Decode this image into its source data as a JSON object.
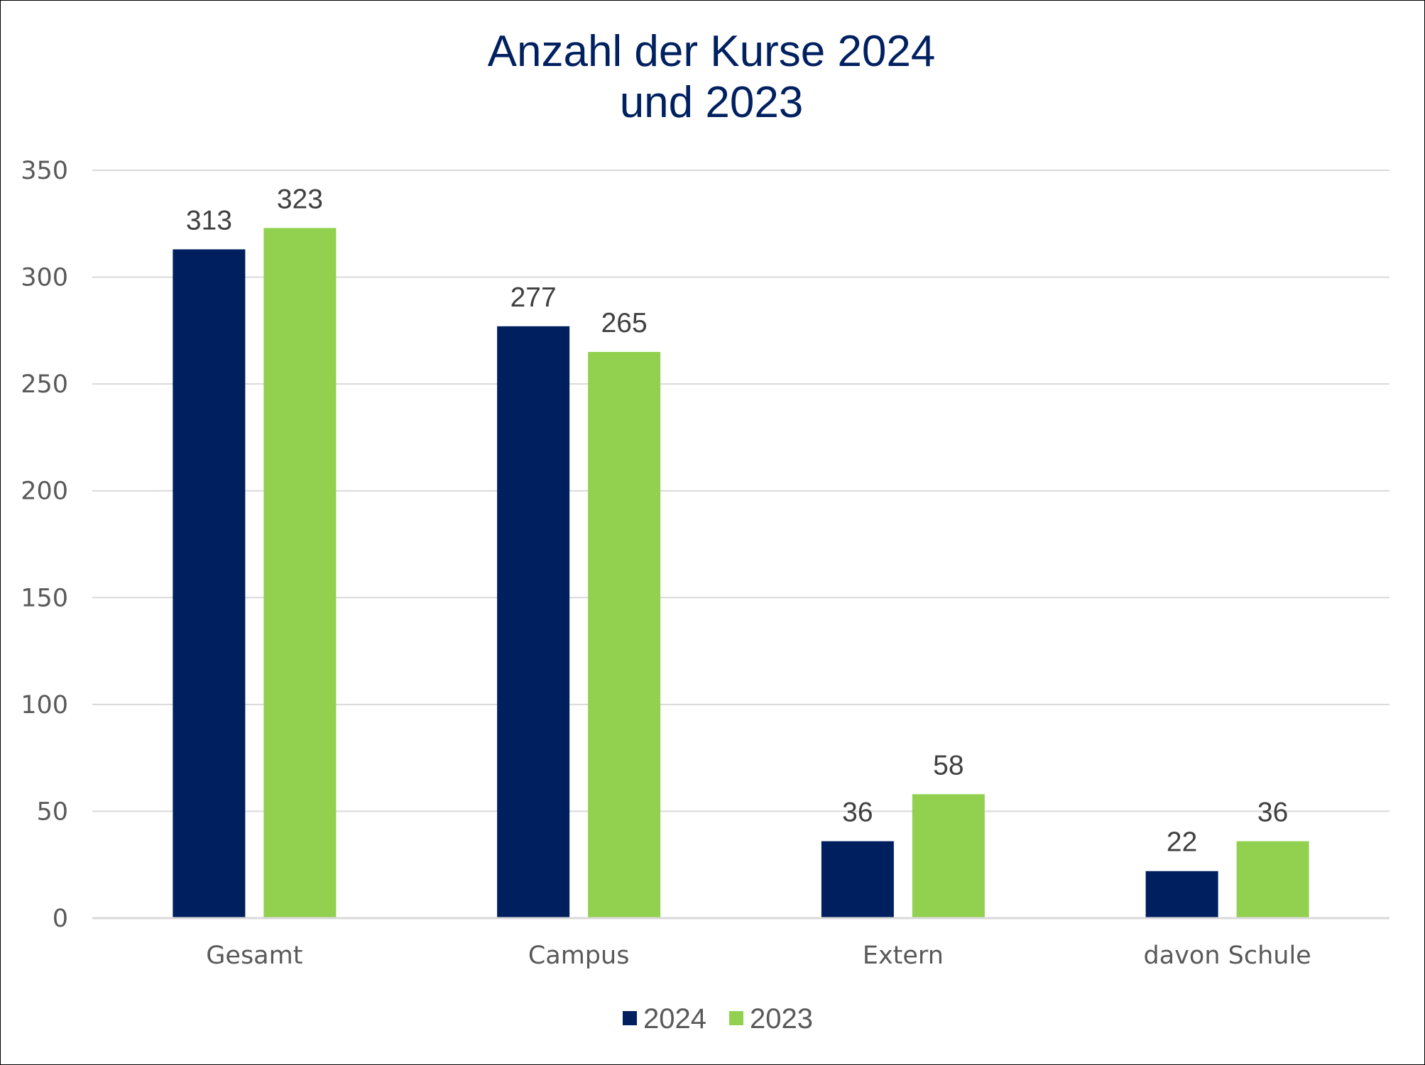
{
  "chart_data": {
    "type": "bar",
    "title_lines": [
      "Anzahl der Kurse 2024",
      "und 2023"
    ],
    "categories": [
      "Gesamt",
      "Campus",
      "Extern",
      "davon Schule"
    ],
    "series": [
      {
        "name": "2024",
        "values": [
          313,
          277,
          36,
          22
        ],
        "color": "#001F5F"
      },
      {
        "name": "2023",
        "values": [
          323,
          265,
          58,
          36
        ],
        "color": "#92D050"
      }
    ],
    "ylim": [
      0,
      350
    ],
    "yticks": [
      0,
      50,
      100,
      150,
      200,
      250,
      300,
      350
    ],
    "grid": true,
    "legend_position": "bottom",
    "xlabel": "",
    "ylabel": "",
    "title_color": "#002060",
    "gridline_color": "#D9D9D9"
  }
}
